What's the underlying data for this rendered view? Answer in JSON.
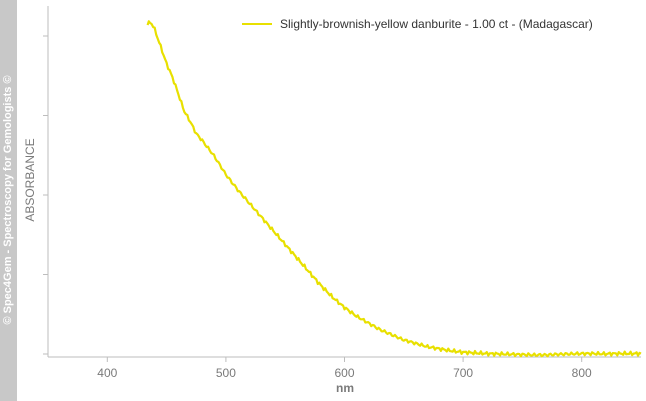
{
  "watermark": "© Spec4Gem - Spectroscopy for Gemologists ©",
  "colors": {
    "series": "#e8e000",
    "axis": "#bdbdbd",
    "text": "#7a7a7a",
    "watermark_bg": "#c8c8c8"
  },
  "chart_data": {
    "type": "line",
    "title": "",
    "xlabel": "nm",
    "ylabel": "ABSORBANCE",
    "xlim": [
      350,
      850
    ],
    "ylim": [
      0,
      1
    ],
    "xticks": [
      400,
      500,
      600,
      700,
      800
    ],
    "ytick_count": 5,
    "show_ytick_labels": false,
    "grid": false,
    "legend_position": "top-right",
    "series": [
      {
        "name": "Slightly-brownish-yellow danburite - 1.00 ct - (Madagascar)",
        "color": "#e8e000",
        "x": [
          434,
          436,
          440,
          445,
          450,
          455,
          460,
          465,
          470,
          475,
          480,
          490,
          500,
          510,
          520,
          530,
          540,
          550,
          560,
          570,
          580,
          590,
          600,
          610,
          620,
          630,
          640,
          650,
          660,
          670,
          680,
          690,
          700,
          710,
          720,
          730,
          740,
          750,
          760,
          770,
          780,
          790,
          800,
          810,
          820,
          830,
          840,
          850
        ],
        "y": [
          0.975,
          0.985,
          0.96,
          0.91,
          0.86,
          0.82,
          0.77,
          0.72,
          0.69,
          0.655,
          0.635,
          0.59,
          0.535,
          0.49,
          0.45,
          0.41,
          0.37,
          0.33,
          0.29,
          0.25,
          0.21,
          0.175,
          0.145,
          0.12,
          0.1,
          0.08,
          0.065,
          0.05,
          0.04,
          0.03,
          0.024,
          0.018,
          0.014,
          0.012,
          0.01,
          0.009,
          0.008,
          0.007,
          0.006,
          0.006,
          0.008,
          0.009,
          0.01,
          0.01,
          0.009,
          0.01,
          0.01,
          0.01
        ]
      }
    ]
  }
}
